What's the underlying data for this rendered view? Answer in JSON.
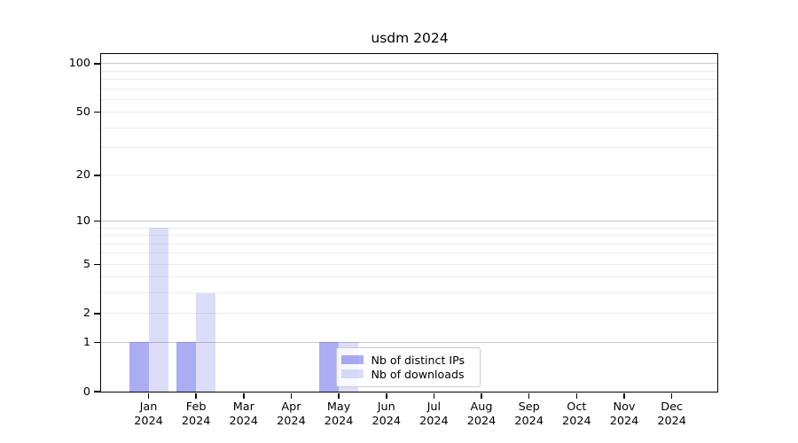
{
  "title": "usdm 2024",
  "chart_data": {
    "type": "bar",
    "title": "usdm 2024",
    "xlabel": "",
    "ylabel": "",
    "year": "2024",
    "categories": [
      "Jan",
      "Feb",
      "Mar",
      "Apr",
      "May",
      "Jun",
      "Jul",
      "Aug",
      "Sep",
      "Oct",
      "Nov",
      "Dec"
    ],
    "series": [
      {
        "name": "Nb of distinct IPs",
        "color": "rgba(85,85,230,0.49)",
        "color_hex": "#acacf3",
        "values": [
          1,
          1,
          0,
          0,
          1,
          0,
          0,
          0,
          0,
          0,
          0,
          0
        ]
      },
      {
        "name": "Nb of downloads",
        "color": "rgba(85,85,230,0.20)",
        "color_hex": "#ddddfa",
        "values": [
          9,
          3,
          0,
          0,
          1,
          0,
          0,
          0,
          0,
          0,
          0,
          0
        ]
      }
    ],
    "y_axis": {
      "scale": "log1p",
      "tick_values": [
        0,
        1,
        2,
        5,
        10,
        20,
        50,
        100
      ],
      "tick_labels": [
        "0",
        "1",
        "2",
        "5",
        "10",
        "20",
        "50",
        "100"
      ],
      "major_gridlines": [
        1,
        10,
        100
      ],
      "minor_gridlines": [
        2,
        3,
        4,
        5,
        6,
        7,
        8,
        9,
        20,
        30,
        40,
        50,
        60,
        70,
        80,
        90
      ],
      "ylim": [
        0,
        114.7
      ]
    },
    "legend": {
      "position": "lower-center",
      "border_color": "#cccccc"
    },
    "grid": {
      "major_color": "#c9c9c9",
      "minor_color": "#ededed"
    },
    "spine_color": "#000000"
  }
}
